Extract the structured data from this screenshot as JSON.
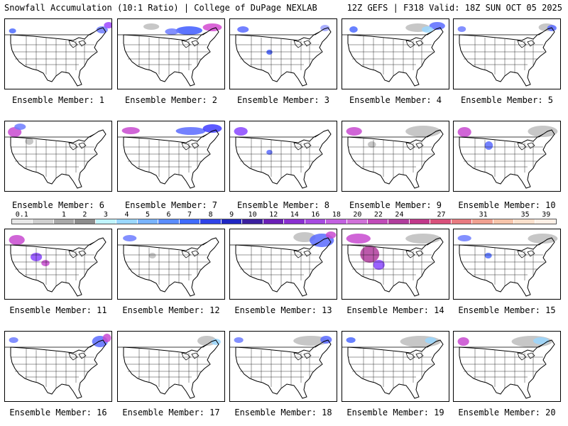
{
  "header": {
    "title": "Snowfall Accumulation (10:1 Ratio) | College of DuPage NEXLAB",
    "run_info": "12Z GEFS | F318 Valid: 18Z SUN OCT 05 2025"
  },
  "panels": [
    {
      "label": "Ensemble Member: 1",
      "snow": [
        [
          0.05,
          0.15,
          0.04,
          0.03,
          "#4d6bff"
        ],
        [
          0.86,
          0.12,
          0.08,
          0.06,
          "#6d7cff"
        ],
        [
          0.93,
          0.06,
          0.06,
          0.05,
          "#9c45ff"
        ]
      ]
    },
    {
      "label": "Ensemble Member: 2",
      "snow": [
        [
          0.55,
          0.12,
          0.22,
          0.08,
          "#3f5cff"
        ],
        [
          0.8,
          0.08,
          0.15,
          0.07,
          "#d24ad0"
        ],
        [
          0.25,
          0.08,
          0.12,
          0.05,
          "#bdbdbd"
        ],
        [
          0.45,
          0.15,
          0.1,
          0.05,
          "#6d7cff"
        ]
      ]
    },
    {
      "label": "Ensemble Member: 3",
      "snow": [
        [
          0.08,
          0.12,
          0.08,
          0.05,
          "#5a6bff"
        ],
        [
          0.85,
          0.1,
          0.06,
          0.05,
          "#9aa0ff"
        ],
        [
          0.35,
          0.45,
          0.03,
          0.03,
          "#3f5cff"
        ]
      ]
    },
    {
      "label": "Ensemble Member: 4",
      "snow": [
        [
          0.08,
          0.12,
          0.05,
          0.05,
          "#4d6bff"
        ],
        [
          0.6,
          0.08,
          0.2,
          0.08,
          "#bdbdbd"
        ],
        [
          0.82,
          0.06,
          0.12,
          0.07,
          "#5a6bff"
        ],
        [
          0.75,
          0.12,
          0.08,
          0.05,
          "#9ad7ff"
        ]
      ]
    },
    {
      "label": "Ensemble Member: 5",
      "snow": [
        [
          0.05,
          0.12,
          0.05,
          0.04,
          "#6d7cff"
        ],
        [
          0.8,
          0.08,
          0.12,
          0.07,
          "#bdbdbd"
        ],
        [
          0.88,
          0.1,
          0.06,
          0.05,
          "#5a6bff"
        ]
      ]
    },
    {
      "label": "Ensemble Member: 6",
      "snow": [
        [
          0.04,
          0.1,
          0.1,
          0.1,
          "#c84ad0"
        ],
        [
          0.1,
          0.05,
          0.08,
          0.05,
          "#6d7cff"
        ],
        [
          0.2,
          0.25,
          0.05,
          0.06,
          "#bdbdbd"
        ]
      ]
    },
    {
      "label": "Ensemble Member: 7",
      "snow": [
        [
          0.05,
          0.1,
          0.14,
          0.06,
          "#c84ad0"
        ],
        [
          0.55,
          0.1,
          0.25,
          0.07,
          "#5a6bff"
        ],
        [
          0.8,
          0.06,
          0.15,
          0.08,
          "#3f3cff"
        ]
      ]
    },
    {
      "label": "Ensemble Member: 8",
      "snow": [
        [
          0.05,
          0.1,
          0.1,
          0.08,
          "#8a46ff"
        ],
        [
          0.35,
          0.42,
          0.03,
          0.03,
          "#5a6bff"
        ]
      ]
    },
    {
      "label": "Ensemble Member: 9",
      "snow": [
        [
          0.05,
          0.1,
          0.12,
          0.08,
          "#c84ad0"
        ],
        [
          0.6,
          0.08,
          0.3,
          0.12,
          "#bdbdbd"
        ],
        [
          0.25,
          0.3,
          0.05,
          0.05,
          "#bdbdbd"
        ]
      ]
    },
    {
      "label": "Ensemble Member: 10",
      "snow": [
        [
          0.05,
          0.1,
          0.1,
          0.1,
          "#c84ad0"
        ],
        [
          0.7,
          0.08,
          0.25,
          0.12,
          "#bdbdbd"
        ],
        [
          0.3,
          0.3,
          0.05,
          0.08,
          "#5a6bff"
        ]
      ]
    },
    {
      "label": "Ensemble Member: 11",
      "snow": [
        [
          0.05,
          0.1,
          0.12,
          0.1,
          "#c84ad0"
        ],
        [
          0.25,
          0.35,
          0.08,
          0.08,
          "#8a46ff"
        ],
        [
          0.35,
          0.45,
          0.05,
          0.05,
          "#c84ad0"
        ]
      ]
    },
    {
      "label": "Ensemble Member: 12",
      "snow": [
        [
          0.06,
          0.1,
          0.1,
          0.05,
          "#6d7cff"
        ],
        [
          0.3,
          0.35,
          0.04,
          0.04,
          "#bdbdbd"
        ]
      ]
    },
    {
      "label": "Ensemble Member: 13",
      "snow": [
        [
          0.6,
          0.06,
          0.18,
          0.1,
          "#bdbdbd"
        ],
        [
          0.75,
          0.08,
          0.2,
          0.15,
          "#5a6bff"
        ],
        [
          0.9,
          0.05,
          0.07,
          0.06,
          "#c84ad0"
        ]
      ]
    },
    {
      "label": "Ensemble Member: 14",
      "snow": [
        [
          0.05,
          0.08,
          0.2,
          0.1,
          "#c84ad0"
        ],
        [
          0.18,
          0.25,
          0.15,
          0.2,
          "#b03c9c"
        ],
        [
          0.3,
          0.45,
          0.08,
          0.1,
          "#8a46ff"
        ],
        [
          0.6,
          0.08,
          0.3,
          0.1,
          "#bdbdbd"
        ]
      ]
    },
    {
      "label": "Ensemble Member: 15",
      "snow": [
        [
          0.05,
          0.1,
          0.1,
          0.05,
          "#6d7cff"
        ],
        [
          0.7,
          0.08,
          0.25,
          0.1,
          "#bdbdbd"
        ],
        [
          0.3,
          0.35,
          0.04,
          0.04,
          "#4d6bff"
        ]
      ]
    },
    {
      "label": "Ensemble Member: 16",
      "snow": [
        [
          0.05,
          0.1,
          0.06,
          0.04,
          "#6d7cff"
        ],
        [
          0.82,
          0.08,
          0.12,
          0.12,
          "#5a6bff"
        ],
        [
          0.92,
          0.05,
          0.05,
          0.08,
          "#c84ad0"
        ]
      ]
    },
    {
      "label": "Ensemble Member: 17",
      "snow": [
        [
          0.75,
          0.08,
          0.15,
          0.1,
          "#bdbdbd"
        ],
        [
          0.88,
          0.12,
          0.06,
          0.05,
          "#9ad7ff"
        ]
      ]
    },
    {
      "label": "Ensemble Member: 18",
      "snow": [
        [
          0.05,
          0.1,
          0.06,
          0.04,
          "#6d7cff"
        ],
        [
          0.6,
          0.08,
          0.3,
          0.1,
          "#bdbdbd"
        ],
        [
          0.85,
          0.08,
          0.08,
          0.07,
          "#5a6bff"
        ]
      ]
    },
    {
      "label": "Ensemble Member: 19",
      "snow": [
        [
          0.05,
          0.1,
          0.06,
          0.04,
          "#4d6bff"
        ],
        [
          0.55,
          0.08,
          0.35,
          0.12,
          "#bdbdbd"
        ],
        [
          0.78,
          0.1,
          0.08,
          0.05,
          "#9ad7ff"
        ]
      ]
    },
    {
      "label": "Ensemble Member: 20",
      "snow": [
        [
          0.05,
          0.1,
          0.08,
          0.08,
          "#c84ad0"
        ],
        [
          0.55,
          0.08,
          0.35,
          0.12,
          "#bdbdbd"
        ],
        [
          0.75,
          0.1,
          0.12,
          0.06,
          "#9ad7ff"
        ]
      ]
    }
  ],
  "scale": {
    "labels": [
      "0.1",
      "1",
      "2",
      "3",
      "4",
      "5",
      "6",
      "7",
      "8",
      "9",
      "10",
      "12",
      "14",
      "16",
      "18",
      "20",
      "22",
      "24",
      "27",
      "31",
      "35",
      "39"
    ],
    "colors": [
      "#e8e8e8",
      "#cfcfcf",
      "#a8a8a8",
      "#8c8c8c",
      "#bff4ff",
      "#9ad7ff",
      "#78b3ff",
      "#5a8cff",
      "#3f6bff",
      "#2f43e8",
      "#1f26c2",
      "#3a1f9e",
      "#6a1fb5",
      "#8a2fd0",
      "#a64ae0",
      "#c260e0",
      "#d070d8",
      "#c04ab8",
      "#b03c9c",
      "#c0388a",
      "#d8507a",
      "#e87a80",
      "#f0a090",
      "#f6c4aa",
      "#fbe0cc",
      "#fff0e6"
    ]
  }
}
